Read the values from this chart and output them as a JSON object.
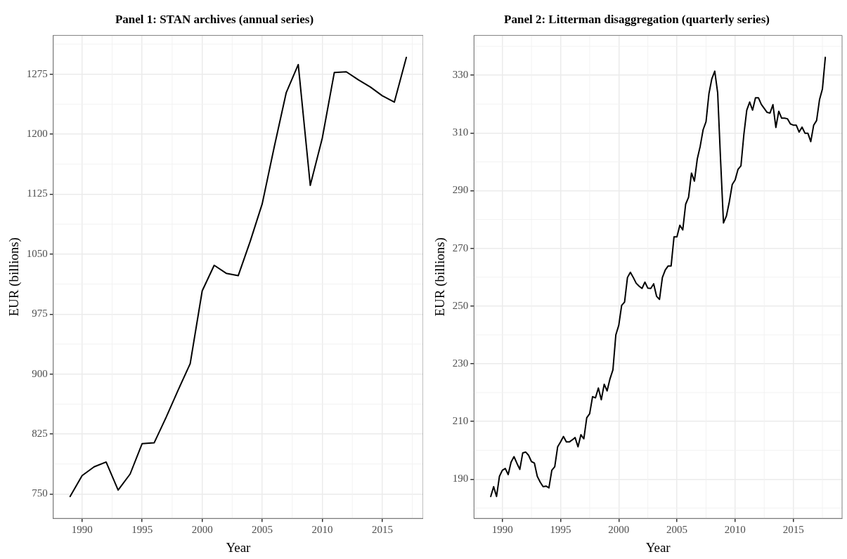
{
  "chart_data": [
    {
      "type": "line",
      "title": "Panel 1: STAN archives (annual series)",
      "xlabel": "Year",
      "ylabel": "EUR (billions)",
      "x": [
        1989,
        1990,
        1991,
        1992,
        1993,
        1994,
        1995,
        1996,
        1997,
        1998,
        1999,
        2000,
        2001,
        2002,
        2003,
        2004,
        2005,
        2006,
        2007,
        2008,
        2009,
        2010,
        2011,
        2012,
        2013,
        2014,
        2015,
        2016,
        2017
      ],
      "series": [
        {
          "color": "#000000",
          "values": [
            747,
            773,
            784,
            790,
            755,
            775,
            813,
            814,
            846,
            880,
            913,
            1004,
            1036,
            1026,
            1023,
            1066,
            1113,
            1184,
            1252,
            1287,
            1136,
            1195,
            1277,
            1278,
            1268,
            1259,
            1248,
            1240,
            1296
          ]
        }
      ],
      "xlim": [
        1987.6,
        2018.4
      ],
      "xticks": [
        1990,
        1995,
        2000,
        2005,
        2010,
        2015
      ],
      "ylim": [
        719.5,
        1323.5
      ],
      "yticks": [
        750,
        825,
        900,
        975,
        1050,
        1125,
        1200,
        1275
      ],
      "grid": true,
      "marker": "none",
      "line_style": "solid"
    },
    {
      "type": "line",
      "title": "Panel 2: Litterman disaggregation (quarterly series)",
      "xlabel": "Year",
      "ylabel": "EUR (billions)",
      "x": [
        1989,
        1989.25,
        1989.5,
        1989.75,
        1990,
        1990.25,
        1990.5,
        1990.75,
        1991,
        1991.25,
        1991.5,
        1991.75,
        1992,
        1992.25,
        1992.5,
        1992.75,
        1993,
        1993.25,
        1993.5,
        1993.75,
        1994,
        1994.25,
        1994.5,
        1994.75,
        1995,
        1995.25,
        1995.5,
        1995.75,
        1996,
        1996.25,
        1996.5,
        1996.75,
        1997,
        1997.25,
        1997.5,
        1997.75,
        1998,
        1998.25,
        1998.5,
        1998.75,
        1999,
        1999.25,
        1999.5,
        1999.75,
        2000,
        2000.25,
        2000.5,
        2000.75,
        2001,
        2001.25,
        2001.5,
        2001.75,
        2002,
        2002.25,
        2002.5,
        2002.75,
        2003,
        2003.25,
        2003.5,
        2003.75,
        2004,
        2004.25,
        2004.5,
        2004.75,
        2005,
        2005.25,
        2005.5,
        2005.75,
        2006,
        2006.25,
        2006.5,
        2006.75,
        2007,
        2007.25,
        2007.5,
        2007.75,
        2008,
        2008.25,
        2008.5,
        2008.75,
        2009,
        2009.25,
        2009.5,
        2009.75,
        2010,
        2010.25,
        2010.5,
        2010.75,
        2011,
        2011.25,
        2011.5,
        2011.75,
        2012,
        2012.25,
        2012.5,
        2012.75,
        2013,
        2013.25,
        2013.5,
        2013.75,
        2014,
        2014.25,
        2014.5,
        2014.75,
        2015,
        2015.25,
        2015.5,
        2015.75,
        2016,
        2016.25,
        2016.5,
        2016.75,
        2017,
        2017.25,
        2017.5,
        2017.75
      ],
      "series": [
        {
          "color": "#000000",
          "values": [
            184.0,
            187.4,
            184.0,
            191.0,
            193.1,
            193.7,
            191.6,
            195.9,
            197.8,
            195.5,
            193.4,
            199.1,
            199.4,
            198.3,
            196.1,
            195.6,
            191.0,
            189.0,
            187.4,
            187.6,
            187.0,
            193.1,
            194.3,
            201.2,
            202.9,
            204.8,
            202.9,
            202.9,
            203.6,
            204.4,
            201.2,
            205.4,
            204.0,
            211.3,
            212.7,
            218.6,
            218.2,
            221.6,
            217.5,
            222.9,
            220.6,
            224.8,
            227.9,
            240.0,
            243.3,
            250.2,
            251.4,
            259.9,
            261.7,
            259.9,
            257.9,
            256.9,
            256.1,
            258.3,
            256.2,
            256.1,
            257.7,
            253.4,
            252.3,
            259.9,
            262.5,
            263.9,
            263.9,
            274.0,
            274.0,
            278.0,
            276.4,
            285.3,
            287.7,
            296.1,
            293.3,
            301.0,
            305.4,
            311.1,
            313.9,
            323.6,
            328.8,
            331.4,
            323.9,
            300.6,
            278.8,
            281.2,
            286.1,
            292.1,
            293.7,
            297.4,
            298.6,
            309.4,
            317.9,
            320.7,
            317.9,
            322.2,
            322.2,
            319.9,
            318.5,
            317.1,
            316.9,
            319.8,
            311.9,
            317.5,
            315.1,
            315.1,
            314.9,
            313.1,
            312.7,
            312.7,
            310.3,
            312.0,
            309.9,
            309.9,
            307.0,
            312.7,
            314.3,
            321.5,
            325.2,
            336.2
          ]
        }
      ],
      "xlim": [
        1987.56,
        2019.19
      ],
      "xticks": [
        1990,
        1995,
        2000,
        2005,
        2010,
        2015
      ],
      "ylim": [
        176.4,
        343.8
      ],
      "yticks": [
        190,
        210,
        230,
        250,
        270,
        290,
        310,
        330
      ],
      "grid": true,
      "marker": "none",
      "line_style": "solid"
    }
  ]
}
